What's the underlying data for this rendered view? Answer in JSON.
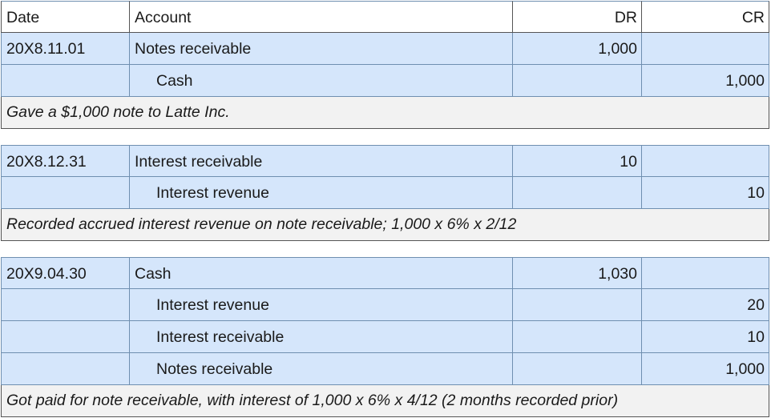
{
  "header": {
    "date": "Date",
    "account": "Account",
    "dr": "DR",
    "cr": "CR"
  },
  "entries": [
    {
      "lines": [
        {
          "date": "20X8.11.01",
          "account": "Notes receivable",
          "dr": "1,000",
          "cr": ""
        },
        {
          "date": "",
          "account": "Cash",
          "dr": "",
          "cr": "1,000"
        }
      ],
      "note": "Gave a $1,000 note to Latte Inc."
    },
    {
      "lines": [
        {
          "date": "20X8.12.31",
          "account": "Interest receivable",
          "dr": "10",
          "cr": ""
        },
        {
          "date": "",
          "account": "Interest revenue",
          "dr": "",
          "cr": "10"
        }
      ],
      "note": "Recorded accrued interest revenue on note receivable; 1,000 x 6% x 2/12"
    },
    {
      "lines": [
        {
          "date": "20X9.04.30",
          "account": "Cash",
          "dr": "1,030",
          "cr": ""
        },
        {
          "date": "",
          "account": "Interest revenue",
          "dr": "",
          "cr": "20"
        },
        {
          "date": "",
          "account": "Interest receivable",
          "dr": "",
          "cr": "10"
        },
        {
          "date": "",
          "account": "Notes receivable",
          "dr": "",
          "cr": "1,000"
        }
      ],
      "note": "Got paid for note receivable, with interest of 1,000 x 6% x 4/12 (2 months recorded prior)"
    }
  ]
}
